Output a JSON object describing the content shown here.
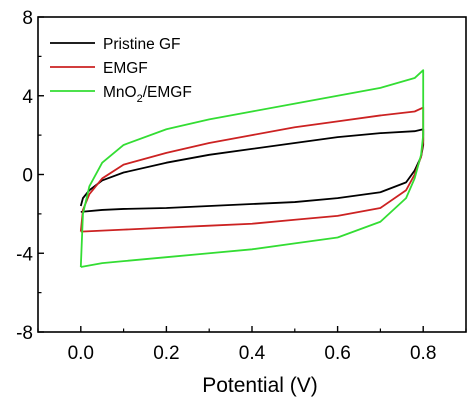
{
  "chart_data": {
    "type": "line",
    "title": "",
    "xlabel": "Potential (V)",
    "ylabel": "",
    "xlim": [
      -0.1,
      0.9
    ],
    "ylim": [
      -8,
      8
    ],
    "x_ticks": [
      0.0,
      0.2,
      0.4,
      0.6,
      0.8
    ],
    "x_tick_labels": [
      "0.0",
      "0.2",
      "0.4",
      "0.6",
      "0.8"
    ],
    "y_ticks": [
      -8,
      -4,
      0,
      4,
      8
    ],
    "y_tick_labels": [
      "-8",
      "-4",
      "0",
      "4",
      "8"
    ],
    "grid": false,
    "legend_position": "top-left",
    "series": [
      {
        "name": "Pristine GF",
        "color": "#000000",
        "x": [
          0.0,
          0.005,
          0.02,
          0.05,
          0.1,
          0.2,
          0.3,
          0.4,
          0.5,
          0.6,
          0.7,
          0.78,
          0.8,
          0.8,
          0.795,
          0.78,
          0.76,
          0.7,
          0.6,
          0.5,
          0.4,
          0.3,
          0.2,
          0.1,
          0.05,
          0.0
        ],
        "y": [
          -1.6,
          -1.2,
          -0.8,
          -0.3,
          0.1,
          0.6,
          1.0,
          1.3,
          1.6,
          1.9,
          2.1,
          2.2,
          2.3,
          1.5,
          0.9,
          0.2,
          -0.4,
          -0.9,
          -1.2,
          -1.4,
          -1.5,
          -1.6,
          -1.7,
          -1.75,
          -1.8,
          -1.9
        ]
      },
      {
        "name": "EMGF",
        "color": "#cc2222",
        "x": [
          0.0,
          0.005,
          0.02,
          0.05,
          0.1,
          0.2,
          0.3,
          0.4,
          0.5,
          0.6,
          0.7,
          0.78,
          0.8,
          0.8,
          0.795,
          0.78,
          0.76,
          0.7,
          0.6,
          0.5,
          0.4,
          0.3,
          0.2,
          0.1,
          0.05,
          0.0
        ],
        "y": [
          -2.9,
          -1.8,
          -1.0,
          -0.2,
          0.5,
          1.1,
          1.6,
          2.0,
          2.4,
          2.7,
          3.0,
          3.2,
          3.4,
          1.7,
          0.9,
          0.0,
          -0.8,
          -1.7,
          -2.1,
          -2.3,
          -2.5,
          -2.6,
          -2.7,
          -2.8,
          -2.85,
          -2.9
        ]
      },
      {
        "name": "MnO₂/EMGF",
        "name_base": "MnO",
        "name_sub": "2",
        "name_tail": "/EMGF",
        "color": "#33dd33",
        "x": [
          0.0,
          0.005,
          0.02,
          0.05,
          0.1,
          0.2,
          0.3,
          0.4,
          0.5,
          0.6,
          0.7,
          0.78,
          0.8,
          0.8,
          0.795,
          0.78,
          0.76,
          0.7,
          0.6,
          0.5,
          0.4,
          0.3,
          0.2,
          0.1,
          0.05,
          0.0
        ],
        "y": [
          -4.7,
          -2.0,
          -0.6,
          0.6,
          1.5,
          2.3,
          2.8,
          3.2,
          3.6,
          4.0,
          4.4,
          4.9,
          5.3,
          2.0,
          1.0,
          -0.2,
          -1.2,
          -2.4,
          -3.2,
          -3.5,
          -3.8,
          -4.0,
          -4.2,
          -4.4,
          -4.5,
          -4.7
        ]
      }
    ]
  }
}
